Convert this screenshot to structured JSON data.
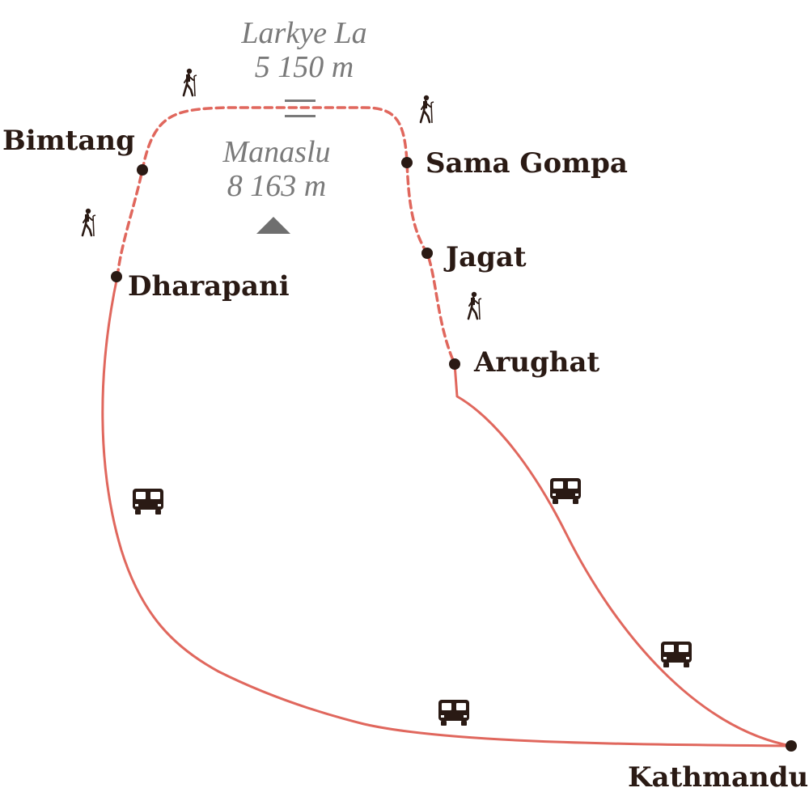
{
  "map": {
    "route_color": "#e0675d",
    "node_color": "#2a1a14",
    "peak_label_color": "#7a7a7a",
    "icon_color": "#2a1a14"
  },
  "places": {
    "bimtang": "Bimtang",
    "sama_gompa": "Sama Gompa",
    "jagat": "Jagat",
    "dharapani": "Dharapani",
    "arughat": "Arughat",
    "kathmandu": "Kathmandu"
  },
  "peaks": {
    "larkye_la": {
      "name": "Larkye La",
      "elevation": "5 150 m"
    },
    "manaslu": {
      "name": "Manaslu",
      "elevation": "8 163 m"
    }
  },
  "legend_icons": {
    "trek": "hiker-icon",
    "drive": "bus-icon",
    "pass": "pass-icon",
    "summit": "peak-triangle-icon"
  }
}
